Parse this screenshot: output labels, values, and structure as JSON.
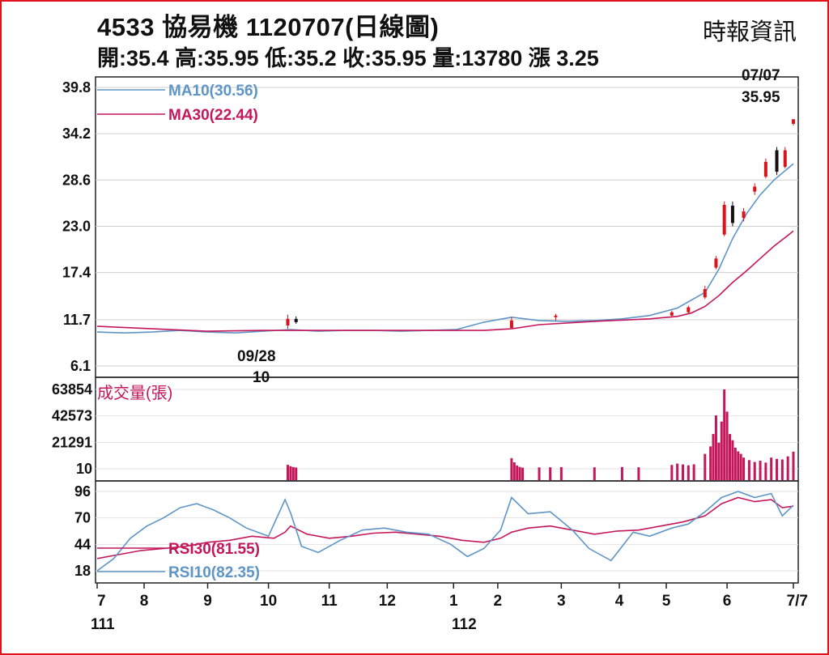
{
  "header": {
    "title": "4533  協易機 1120707(日線圖)",
    "source": "時報資訊",
    "ohlc": "開:35.4 高:35.95 低:35.2 收:35.95 量:13780 漲 3.25"
  },
  "colors": {
    "frame": "#e1121b",
    "ma10": "#5e95c6",
    "ma30": "#c4175b",
    "candle_up": "#d9141a",
    "candle_down": "#111111",
    "volume": "#c4175b"
  },
  "chart_data": [
    {
      "type": "line",
      "panel": "price",
      "y_ticks": [
        "39.8",
        "34.2",
        "28.6",
        "23.0",
        "17.4",
        "11.7",
        "6.1"
      ],
      "ylim": [
        6.1,
        39.8
      ],
      "x_ticks": [
        "7",
        "8",
        "9",
        "10",
        "11",
        "12",
        "1",
        "2",
        "3",
        "4",
        "5",
        "6",
        "7/7"
      ],
      "x_year_labels": [
        "111",
        "112"
      ],
      "series": [
        {
          "name": "MA10(30.56)",
          "x": [
            0,
            10,
            20,
            30,
            40,
            50,
            60,
            70,
            80,
            90,
            100,
            110,
            120,
            130,
            140,
            150,
            160,
            170,
            180,
            190,
            200,
            210,
            220,
            225,
            230,
            235,
            240,
            245,
            250,
            252
          ],
          "values": [
            10.2,
            10.1,
            10.2,
            10.4,
            10.2,
            10.1,
            10.3,
            10.5,
            10.3,
            10.4,
            10.4,
            10.3,
            10.4,
            10.5,
            11.4,
            12.0,
            11.6,
            11.5,
            11.6,
            11.8,
            12.2,
            13.1,
            15.0,
            17.8,
            21.5,
            24.5,
            26.8,
            28.6,
            30.0,
            30.56
          ]
        },
        {
          "name": "MA30(22.44)",
          "x": [
            0,
            20,
            40,
            60,
            80,
            100,
            120,
            140,
            150,
            160,
            180,
            200,
            210,
            215,
            220,
            225,
            230,
            235,
            240,
            245,
            250,
            252
          ],
          "values": [
            10.9,
            10.6,
            10.3,
            10.4,
            10.4,
            10.4,
            10.4,
            10.4,
            10.6,
            11.1,
            11.5,
            11.8,
            12.1,
            12.5,
            13.3,
            14.6,
            16.2,
            17.6,
            19.1,
            20.6,
            21.9,
            22.44
          ]
        }
      ],
      "candles": [
        {
          "x": 69,
          "o": 11.0,
          "h": 12.3,
          "l": 10.6,
          "c": 11.8
        },
        {
          "x": 72,
          "o": 11.8,
          "h": 12.1,
          "l": 11.2,
          "c": 11.4
        },
        {
          "x": 150,
          "o": 10.7,
          "h": 12.0,
          "l": 10.6,
          "c": 11.6
        },
        {
          "x": 166,
          "o": 12.0,
          "h": 12.4,
          "l": 11.6,
          "c": 12.2
        },
        {
          "x": 208,
          "o": 12.2,
          "h": 12.8,
          "l": 12.0,
          "c": 12.6
        },
        {
          "x": 214,
          "o": 12.6,
          "h": 13.4,
          "l": 12.4,
          "c": 13.2
        },
        {
          "x": 220,
          "o": 14.4,
          "h": 15.8,
          "l": 14.2,
          "c": 15.4
        },
        {
          "x": 224,
          "o": 18.0,
          "h": 19.4,
          "l": 17.8,
          "c": 19.1
        },
        {
          "x": 227,
          "o": 22.0,
          "h": 26.0,
          "l": 21.8,
          "c": 25.6
        },
        {
          "x": 230,
          "o": 25.5,
          "h": 26.0,
          "l": 23.0,
          "c": 23.4
        },
        {
          "x": 234,
          "o": 24.0,
          "h": 25.2,
          "l": 23.6,
          "c": 24.8
        },
        {
          "x": 238,
          "o": 27.2,
          "h": 28.2,
          "l": 26.8,
          "c": 27.8
        },
        {
          "x": 242,
          "o": 29.0,
          "h": 31.2,
          "l": 28.8,
          "c": 30.8
        },
        {
          "x": 246,
          "o": 32.2,
          "h": 32.6,
          "l": 29.2,
          "c": 29.6
        },
        {
          "x": 249,
          "o": 30.2,
          "h": 32.6,
          "l": 30.0,
          "c": 32.2
        },
        {
          "x": 252,
          "o": 35.4,
          "h": 35.95,
          "l": 35.2,
          "c": 35.95
        }
      ],
      "annotations": [
        {
          "text": "09/28",
          "x": 66
        },
        {
          "text": "10",
          "x": 66
        },
        {
          "text": "07/07",
          "x": 252
        },
        {
          "text": "35.95",
          "x": 252
        }
      ]
    },
    {
      "type": "bar",
      "panel": "volume",
      "title": "成交量(張)",
      "y_ticks": [
        "63854",
        "42573",
        "21291",
        "10"
      ],
      "ylim": [
        10,
        63854
      ],
      "x": [
        69,
        70,
        71,
        72,
        150,
        151,
        152,
        153,
        154,
        160,
        164,
        168,
        180,
        190,
        196,
        208,
        210,
        212,
        214,
        216,
        220,
        222,
        223,
        224,
        225,
        226,
        227,
        228,
        229,
        230,
        231,
        232,
        233,
        234,
        236,
        238,
        240,
        242,
        244,
        246,
        248,
        250,
        252
      ],
      "values": [
        3200,
        2100,
        1400,
        1000,
        8600,
        5200,
        2600,
        1500,
        900,
        1100,
        1200,
        1300,
        1200,
        1400,
        1200,
        3100,
        4200,
        3500,
        2800,
        3600,
        12000,
        18000,
        28000,
        43000,
        21000,
        38000,
        63854,
        46000,
        28000,
        23000,
        17000,
        14000,
        12000,
        9000,
        7000,
        5500,
        6500,
        5000,
        9000,
        8000,
        7500,
        10000,
        13780
      ]
    },
    {
      "type": "line",
      "panel": "rsi",
      "y_ticks": [
        "96",
        "70",
        "44",
        "18"
      ],
      "ylim": [
        10,
        100
      ],
      "series": [
        {
          "name": "RSI30(81.55)",
          "x": [
            0,
            8,
            16,
            24,
            32,
            40,
            48,
            56,
            64,
            68,
            70,
            76,
            84,
            92,
            100,
            108,
            116,
            124,
            132,
            140,
            146,
            150,
            156,
            164,
            172,
            180,
            188,
            196,
            204,
            212,
            220,
            226,
            232,
            238,
            244,
            248,
            252
          ],
          "values": [
            30,
            34,
            38,
            40,
            42,
            46,
            48,
            52,
            50,
            56,
            62,
            54,
            50,
            52,
            55,
            56,
            54,
            52,
            48,
            46,
            50,
            56,
            60,
            62,
            58,
            54,
            57,
            58,
            62,
            66,
            72,
            84,
            90,
            86,
            88,
            80,
            81.55
          ]
        },
        {
          "name": "RSI10(82.35)",
          "x": [
            0,
            6,
            12,
            18,
            24,
            30,
            36,
            42,
            48,
            54,
            62,
            68,
            70,
            74,
            80,
            88,
            96,
            104,
            112,
            120,
            128,
            134,
            140,
            146,
            150,
            156,
            164,
            172,
            178,
            186,
            194,
            200,
            208,
            214,
            220,
            226,
            232,
            238,
            244,
            248,
            252
          ],
          "values": [
            18,
            30,
            50,
            62,
            70,
            80,
            84,
            78,
            70,
            60,
            52,
            88,
            75,
            42,
            36,
            48,
            58,
            60,
            56,
            54,
            44,
            32,
            40,
            58,
            90,
            74,
            76,
            58,
            40,
            28,
            56,
            52,
            60,
            64,
            76,
            90,
            96,
            90,
            94,
            72,
            82.35
          ]
        }
      ]
    }
  ]
}
